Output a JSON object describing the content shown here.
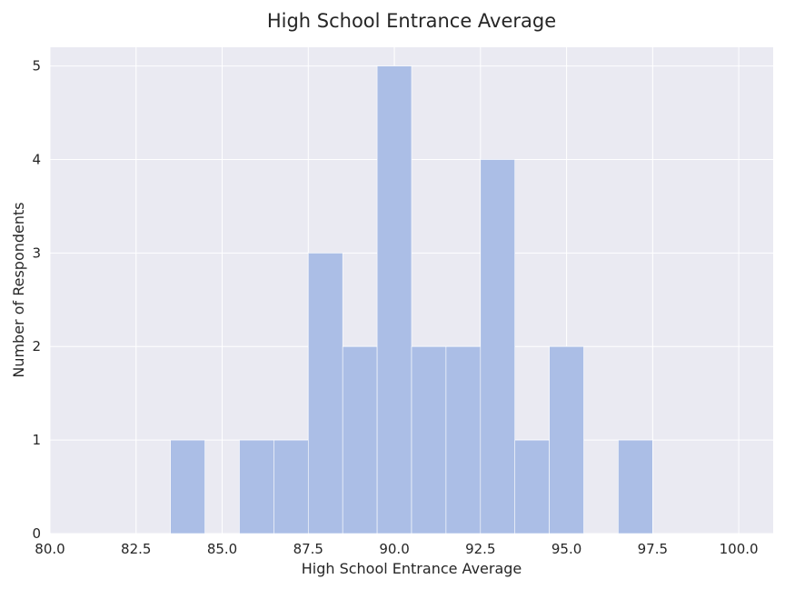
{
  "chart_data": {
    "type": "bar",
    "subtype": "histogram",
    "title": "High School Entrance Average",
    "xlabel": "High School Entrance Average",
    "ylabel": "Number of Respondents",
    "xlim": [
      80,
      101
    ],
    "ylim": [
      0,
      5.2
    ],
    "xticks": [
      "80.0",
      "82.5",
      "85.0",
      "87.5",
      "90.0",
      "92.5",
      "95.0",
      "97.5",
      "100.0"
    ],
    "xtick_values": [
      80,
      82.5,
      85,
      87.5,
      90,
      92.5,
      95,
      97.5,
      100
    ],
    "yticks": [
      "0",
      "1",
      "2",
      "3",
      "4",
      "5"
    ],
    "ytick_values": [
      0,
      1,
      2,
      3,
      4,
      5
    ],
    "bin_width": 1,
    "bins": [
      {
        "start": 83.5,
        "count": 1
      },
      {
        "start": 85.5,
        "count": 1
      },
      {
        "start": 86.5,
        "count": 1
      },
      {
        "start": 87.5,
        "count": 3
      },
      {
        "start": 88.5,
        "count": 2
      },
      {
        "start": 89.5,
        "count": 5
      },
      {
        "start": 90.5,
        "count": 2
      },
      {
        "start": 91.5,
        "count": 2
      },
      {
        "start": 92.5,
        "count": 4
      },
      {
        "start": 93.5,
        "count": 1
      },
      {
        "start": 94.5,
        "count": 2
      },
      {
        "start": 96.5,
        "count": 1
      }
    ],
    "grid": true,
    "colors": {
      "plot_background": "#eaeaf2",
      "grid": "#ffffff",
      "bar_fill": "#abbee6",
      "bar_edge": "#ffffff",
      "text": "#262626"
    }
  }
}
